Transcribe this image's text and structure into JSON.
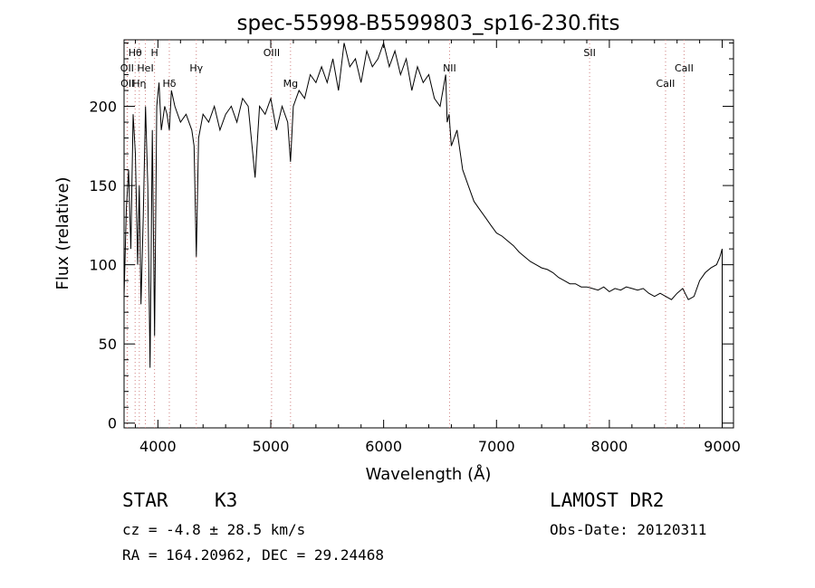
{
  "chart_data": {
    "type": "line",
    "title": "spec-55998-B5599803_sp16-230.fits",
    "xlabel": "Wavelength (Å)",
    "ylabel": "Flux (relative)",
    "xlim": [
      3700,
      9100
    ],
    "ylim": [
      -3,
      242
    ],
    "xticks": [
      4000,
      5000,
      6000,
      7000,
      8000,
      9000
    ],
    "yticks": [
      0,
      50,
      100,
      150,
      200
    ],
    "grid": false,
    "line_color": "#000000",
    "marker_line_color": "#d08080",
    "spectrum": {
      "x": [
        3700,
        3720,
        3740,
        3760,
        3780,
        3800,
        3820,
        3835,
        3850,
        3870,
        3890,
        3910,
        3930,
        3950,
        3970,
        3990,
        4010,
        4030,
        4060,
        4080,
        4101,
        4120,
        4150,
        4200,
        4250,
        4300,
        4320,
        4340,
        4360,
        4400,
        4450,
        4500,
        4550,
        4600,
        4650,
        4700,
        4750,
        4800,
        4861,
        4900,
        4950,
        5000,
        5050,
        5100,
        5150,
        5175,
        5200,
        5250,
        5300,
        5350,
        5400,
        5450,
        5500,
        5550,
        5600,
        5650,
        5700,
        5750,
        5800,
        5850,
        5900,
        5950,
        6000,
        6050,
        6100,
        6150,
        6200,
        6250,
        6300,
        6350,
        6400,
        6450,
        6500,
        6550,
        6563,
        6580,
        6600,
        6650,
        6700,
        6750,
        6800,
        6850,
        6900,
        6950,
        7000,
        7050,
        7100,
        7150,
        7200,
        7250,
        7300,
        7350,
        7400,
        7450,
        7500,
        7550,
        7600,
        7650,
        7700,
        7750,
        7800,
        7850,
        7900,
        7950,
        8000,
        8050,
        8100,
        8150,
        8200,
        8250,
        8300,
        8350,
        8400,
        8450,
        8500,
        8550,
        8600,
        8650,
        8700,
        8750,
        8800,
        8850,
        8900,
        8950,
        8980,
        9000
      ],
      "y": [
        80,
        135,
        160,
        110,
        195,
        170,
        100,
        150,
        75,
        130,
        200,
        150,
        35,
        185,
        55,
        200,
        215,
        185,
        200,
        195,
        185,
        210,
        200,
        190,
        195,
        185,
        175,
        105,
        180,
        195,
        190,
        200,
        185,
        195,
        200,
        190,
        205,
        200,
        155,
        200,
        195,
        205,
        185,
        200,
        190,
        165,
        200,
        210,
        205,
        220,
        215,
        225,
        215,
        230,
        210,
        240,
        225,
        230,
        215,
        235,
        225,
        230,
        240,
        225,
        235,
        220,
        230,
        210,
        225,
        215,
        220,
        205,
        200,
        220,
        190,
        195,
        175,
        185,
        160,
        150,
        140,
        135,
        130,
        125,
        120,
        118,
        115,
        112,
        108,
        105,
        102,
        100,
        98,
        97,
        95,
        92,
        90,
        88,
        88,
        86,
        86,
        85,
        84,
        86,
        83,
        85,
        84,
        86,
        85,
        84,
        85,
        82,
        80,
        82,
        80,
        78,
        82,
        85,
        78,
        80,
        90,
        95,
        98,
        100,
        105,
        110
      ]
    },
    "lines": [
      {
        "name": "Hθ",
        "x": 3798,
        "row": 0
      },
      {
        "name": "H",
        "x": 3970,
        "row": 0
      },
      {
        "name": "OII",
        "x": 3727,
        "row": 1
      },
      {
        "name": "HeI",
        "x": 3889,
        "row": 1
      },
      {
        "name": "Hγ",
        "x": 4340,
        "row": 1
      },
      {
        "name": "OII",
        "x": 3730,
        "row": 2
      },
      {
        "name": "Hη",
        "x": 3835,
        "row": 2
      },
      {
        "name": "Hδ",
        "x": 4101,
        "row": 2
      },
      {
        "name": "OIII",
        "x": 5007,
        "row": 0
      },
      {
        "name": "Mg",
        "x": 5175,
        "row": 2
      },
      {
        "name": "NII",
        "x": 6584,
        "row": 1
      },
      {
        "name": "SII",
        "x": 7825,
        "row": 0
      },
      {
        "name": "CaII",
        "x": 8662,
        "row": 1
      },
      {
        "name": "CaII",
        "x": 8498,
        "row": 2
      }
    ]
  },
  "info": {
    "object_class": "STAR",
    "subclass": "K3",
    "survey": "LAMOST DR2",
    "redshift": "cz = -4.8 ± 28.5 km/s",
    "obs_date": "Obs-Date: 20120311",
    "coordinates": "RA = 164.20962, DEC =  29.24468"
  }
}
